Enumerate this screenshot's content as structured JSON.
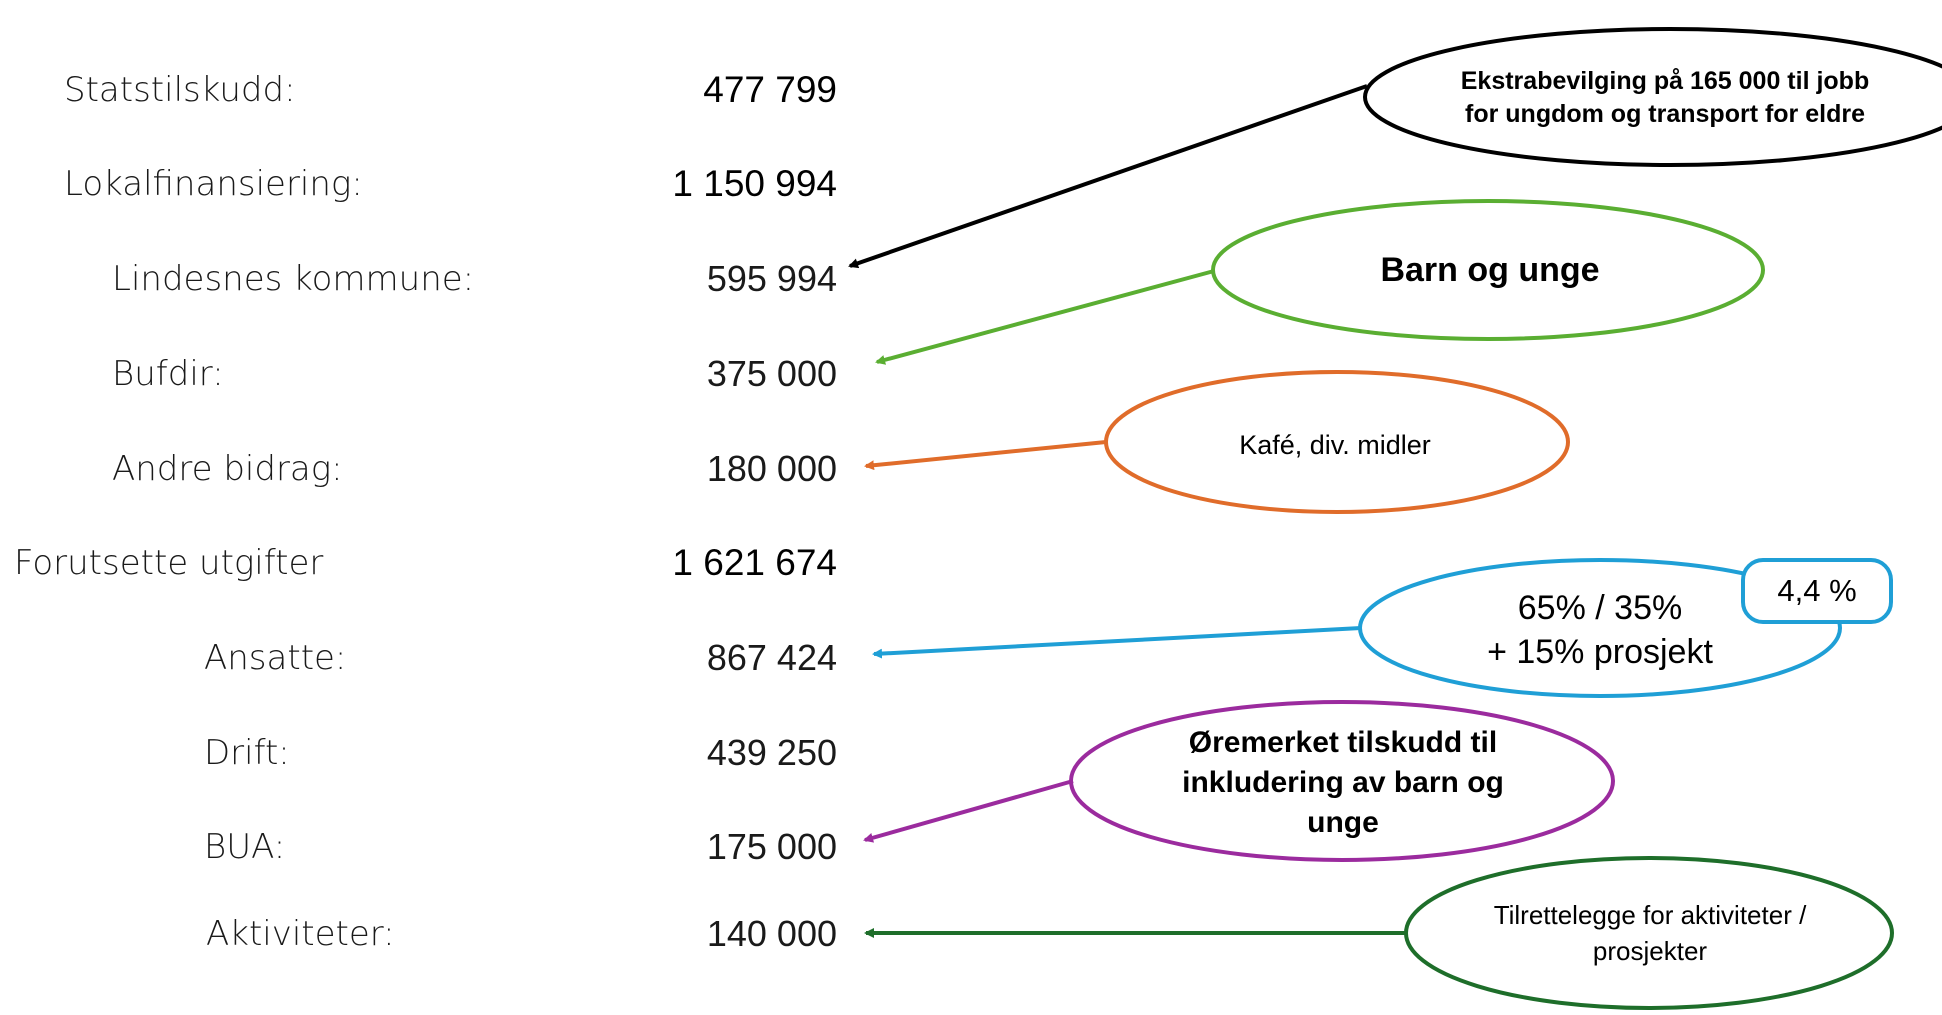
{
  "rows": [
    {
      "label": "Statstilskudd:",
      "value": "477 799"
    },
    {
      "label": "Lokalfinansiering:",
      "value": "1 150 994"
    },
    {
      "label": "Lindesnes kommune:",
      "value": "595 994"
    },
    {
      "label": "Bufdir:",
      "value": "375 000"
    },
    {
      "label": "Andre bidrag:",
      "value": "180 000"
    },
    {
      "label": "Forutsette utgifter",
      "value": "1 621 674"
    },
    {
      "label": "Ansatte:",
      "value": "867 424"
    },
    {
      "label": "Drift:",
      "value": "439 250"
    },
    {
      "label": "BUA:",
      "value": "175 000"
    },
    {
      "label": "Aktiviteter:",
      "value": "140 000"
    }
  ],
  "callouts": {
    "ekstrabevilging": "Ekstrabevilging på 165 000 til jobb for ungdom og transport for eldre",
    "barn_og_unge": "Barn og unge",
    "kafe": "Kafé, div. midler",
    "fordeling_line1": "65% / 35%",
    "fordeling_line2": "+ 15% prosjekt",
    "prosent_badge": "4,4 %",
    "oremerket": "Øremerket tilskudd til inkludering av barn og unge",
    "tilrettelegge": "Tilrettelegge for aktiviteter / prosjekter"
  },
  "colors": {
    "black": "#000000",
    "green": "#5aae32",
    "orange": "#e06c2a",
    "blue": "#1f9fd6",
    "purple": "#9b2b9e",
    "dark_green": "#1e6e2a"
  }
}
